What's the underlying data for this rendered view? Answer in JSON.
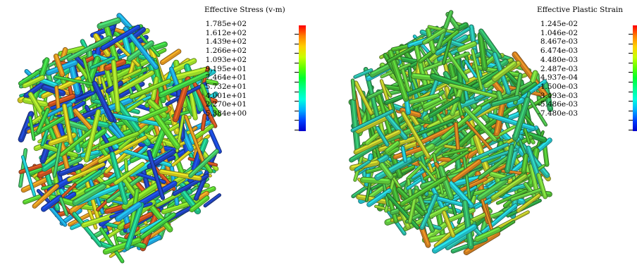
{
  "panels": [
    {
      "legend": {
        "title": "Effective Stress (v-m)",
        "labels": [
          "1.785e+02",
          "1.612e+02",
          "1.439e+02",
          "1.266e+02",
          "1.093e+02",
          "9.195e+01",
          "7.464e+01",
          "5.732e+01",
          "4.001e+01",
          "2.270e+01",
          "5.384e+00"
        ],
        "colors": [
          "#ff0000",
          "#ff7f00",
          "#ffd000",
          "#c8ff00",
          "#60ff00",
          "#00ff30",
          "#00ff90",
          "#00ffe0",
          "#00b0ff",
          "#0040ff",
          "#0000cc"
        ]
      },
      "palette": [
        "#1a44c8",
        "#1e3fb0",
        "#1ea0d8",
        "#22c0c8",
        "#3cc040",
        "#58c830",
        "#7ad028",
        "#9ad828",
        "#c8c020",
        "#d89020",
        "#c05020",
        "#20b880",
        "#40b860"
      ]
    },
    {
      "legend": {
        "title": "Effective Plastic Strain",
        "labels": [
          "1.245e-02",
          "1.046e-02",
          "8.467e-03",
          "6.474e-03",
          "4.480e-03",
          "2.487e-03",
          "4.937e-04",
          "-1.500e-03",
          "-3.493e-03",
          "-5.486e-03",
          "-7.480e-03"
        ],
        "colors": [
          "#ff0000",
          "#ff7f00",
          "#ffd000",
          "#c8ff00",
          "#60ff00",
          "#00ff30",
          "#00ff90",
          "#00ffe0",
          "#00b0ff",
          "#0040ff",
          "#0000cc"
        ]
      },
      "palette": [
        "#3ca030",
        "#4cb030",
        "#5cc038",
        "#70c838",
        "#48b048",
        "#30a860",
        "#28b0a0",
        "#22b8c0",
        "#8ac030",
        "#b0b828",
        "#c87a20",
        "#2a9a40",
        "#60c040"
      ]
    }
  ]
}
